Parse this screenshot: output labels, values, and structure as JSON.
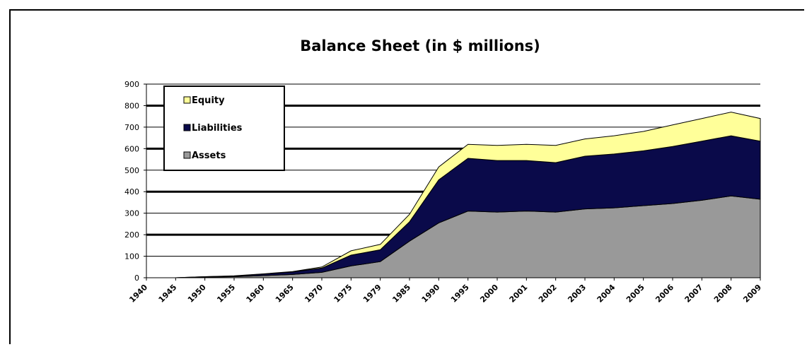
{
  "chart_data": {
    "type": "area",
    "stacked": true,
    "title": "Balance Sheet (in $ millions)",
    "xlabel": "",
    "ylabel": "",
    "ylim": [
      0,
      900
    ],
    "yticks": [
      0,
      100,
      200,
      300,
      400,
      500,
      600,
      700,
      800,
      900
    ],
    "grid": true,
    "legend_position": "top-left",
    "categories": [
      "1940",
      "1945",
      "1950",
      "1955",
      "1960",
      "1965",
      "1970",
      "1975",
      "1979",
      "1985",
      "1990",
      "1995",
      "2000",
      "2001",
      "2002",
      "2003",
      "2004",
      "2005",
      "2006",
      "2007",
      "2008",
      "2009"
    ],
    "series": [
      {
        "name": "Assets",
        "color": "#999999",
        "values": [
          0,
          0,
          3,
          5,
          10,
          15,
          25,
          55,
          75,
          170,
          255,
          310,
          305,
          310,
          305,
          320,
          325,
          335,
          345,
          360,
          380,
          365
        ]
      },
      {
        "name": "Liabilities",
        "color": "#0a0a4a",
        "values": [
          0,
          0,
          2,
          3,
          7,
          12,
          20,
          50,
          55,
          90,
          200,
          245,
          240,
          235,
          230,
          245,
          250,
          255,
          265,
          275,
          280,
          270
        ]
      },
      {
        "name": "Equity",
        "color": "#ffff99",
        "values": [
          0,
          0,
          0,
          1,
          1,
          2,
          5,
          20,
          25,
          35,
          60,
          65,
          70,
          75,
          80,
          80,
          85,
          90,
          100,
          105,
          110,
          105
        ]
      }
    ],
    "legend_order": [
      "Equity",
      "Liabilities",
      "Assets"
    ]
  }
}
